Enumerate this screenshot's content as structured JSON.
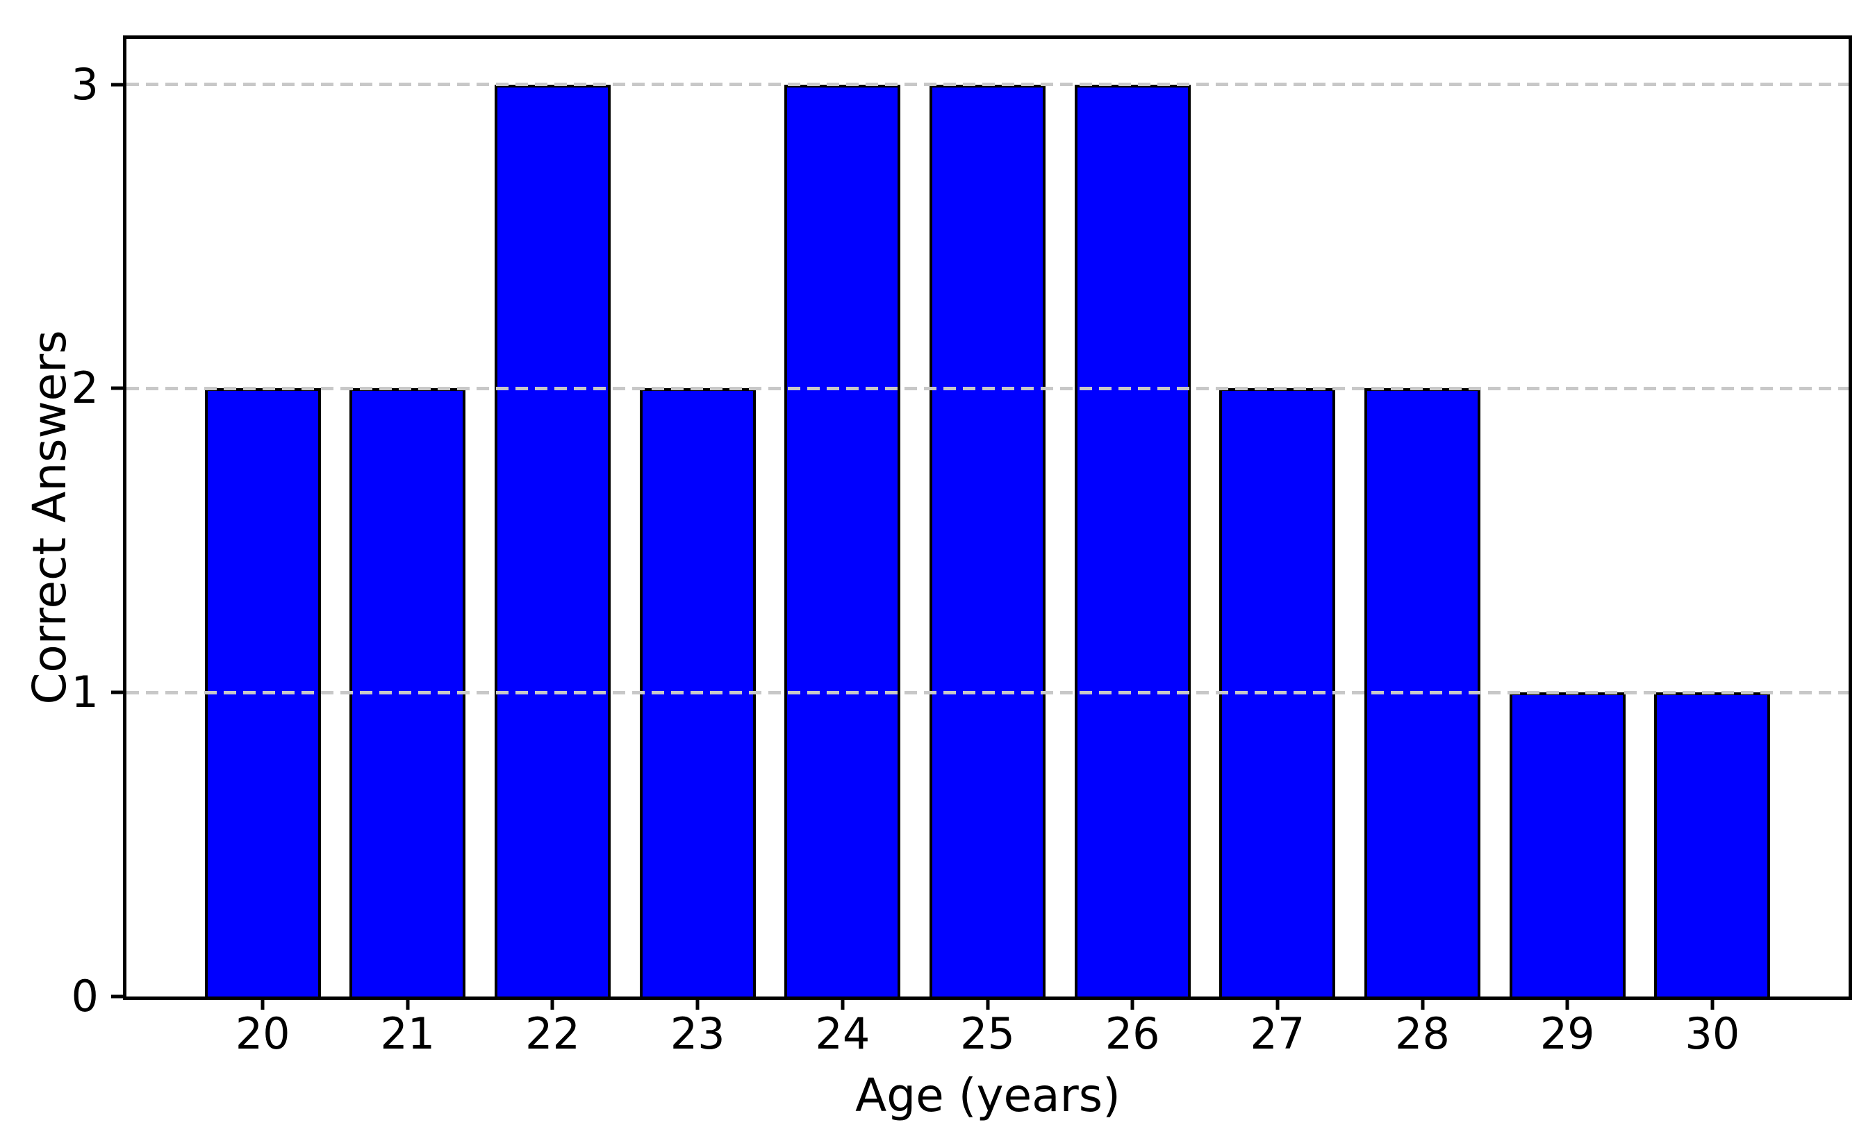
{
  "chart_data": {
    "type": "bar",
    "title": "",
    "xlabel": "Age (years)",
    "ylabel": "Correct Answers",
    "categories": [
      "20",
      "21",
      "22",
      "23",
      "24",
      "25",
      "26",
      "27",
      "28",
      "29",
      "30"
    ],
    "values": [
      2,
      2,
      3,
      2,
      3,
      3,
      3,
      2,
      2,
      1,
      1
    ],
    "yticks": [
      0,
      1,
      2,
      3
    ],
    "ylim": [
      0,
      3.15
    ],
    "bar_width_fraction": 0.8,
    "grid": "horizontal dashed lines at y=1,2,3 drawn above bars",
    "legend_position": "none",
    "colors": {
      "bar_fill": "#0000ff",
      "bar_edge": "#000000",
      "grid_line": "#c8c8c8",
      "spine": "#000000",
      "text": "#000000",
      "background": "#ffffff"
    }
  }
}
